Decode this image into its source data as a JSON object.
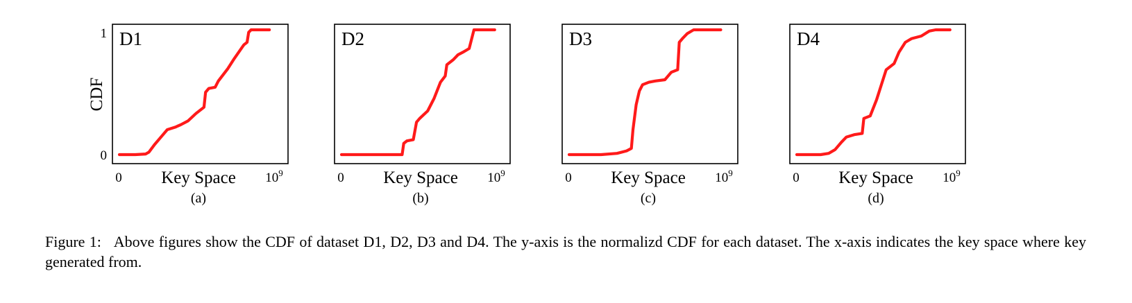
{
  "figure": {
    "y_axis_label": "CDF",
    "caption_lead": "Figure 1:",
    "caption_text": "Above figures show the CDF of dataset D1, D2, D3 and D4. The y-axis is the normalizd CDF for each dataset. The x-axis indicates the key space where key generated from."
  },
  "colors": {
    "curve": "#ff1a1a",
    "frame": "#000000"
  },
  "chart_data": [
    {
      "type": "line",
      "title": "D1",
      "sublabel": "(a)",
      "xlabel": "Key Space",
      "ylabel": "CDF",
      "x_tick_labels": [
        "0",
        "10^9"
      ],
      "y_tick_labels": [
        "0",
        "1"
      ],
      "xlim": [
        0,
        1000000000
      ],
      "ylim": [
        0,
        1
      ],
      "series": [
        {
          "x": [
            0,
            100000000,
            165000000,
            185000000,
            220000000,
            260000000,
            300000000,
            350000000,
            385000000,
            430000000,
            480000000,
            530000000,
            540000000,
            560000000,
            600000000,
            620000000,
            680000000,
            720000000,
            780000000,
            800000000,
            810000000,
            825000000,
            880000000,
            940000000
          ],
          "y": [
            0.0,
            0.0,
            0.005,
            0.02,
            0.08,
            0.14,
            0.2,
            0.22,
            0.24,
            0.27,
            0.33,
            0.38,
            0.5,
            0.53,
            0.54,
            0.59,
            0.69,
            0.77,
            0.88,
            0.9,
            0.98,
            1.0,
            1.0,
            1.0
          ]
        }
      ]
    },
    {
      "type": "line",
      "title": "D2",
      "sublabel": "(b)",
      "xlabel": "Key Space",
      "ylabel": "CDF",
      "x_tick_labels": [
        "0",
        "10^9"
      ],
      "y_tick_labels": [
        "0",
        "1"
      ],
      "xlim": [
        0,
        1000000000
      ],
      "ylim": [
        0,
        1
      ],
      "series": [
        {
          "x": [
            0,
            200000000,
            250000000,
            380000000,
            390000000,
            410000000,
            450000000,
            470000000,
            490000000,
            540000000,
            580000000,
            620000000,
            650000000,
            660000000,
            700000000,
            730000000,
            760000000,
            800000000,
            830000000,
            850000000,
            960000000
          ],
          "y": [
            0.0,
            0.0,
            0.0,
            0.0,
            0.09,
            0.11,
            0.12,
            0.26,
            0.29,
            0.35,
            0.45,
            0.58,
            0.63,
            0.72,
            0.76,
            0.8,
            0.82,
            0.85,
            1.0,
            1.0,
            1.0
          ]
        }
      ]
    },
    {
      "type": "line",
      "title": "D3",
      "sublabel": "(c)",
      "xlabel": "Key Space",
      "ylabel": "CDF",
      "x_tick_labels": [
        "0",
        "10^9"
      ],
      "y_tick_labels": [
        "0",
        "1"
      ],
      "xlim": [
        0,
        1000000000
      ],
      "ylim": [
        0,
        1
      ],
      "series": [
        {
          "x": [
            0,
            200000000,
            300000000,
            360000000,
            390000000,
            400000000,
            420000000,
            440000000,
            460000000,
            500000000,
            540000000,
            600000000,
            640000000,
            680000000,
            690000000,
            710000000,
            740000000,
            780000000,
            820000000,
            950000000
          ],
          "y": [
            0.0,
            0.0,
            0.01,
            0.03,
            0.05,
            0.2,
            0.4,
            0.51,
            0.56,
            0.58,
            0.59,
            0.6,
            0.66,
            0.68,
            0.9,
            0.93,
            0.97,
            1.0,
            1.0,
            1.0
          ]
        }
      ]
    },
    {
      "type": "line",
      "title": "D4",
      "sublabel": "(d)",
      "xlabel": "Key Space",
      "ylabel": "CDF",
      "x_tick_labels": [
        "0",
        "10^9"
      ],
      "y_tick_labels": [
        "0",
        "1"
      ],
      "xlim": [
        0,
        1000000000
      ],
      "ylim": [
        0,
        1
      ],
      "series": [
        {
          "x": [
            0,
            150000000,
            200000000,
            240000000,
            280000000,
            310000000,
            360000000,
            410000000,
            420000000,
            460000000,
            500000000,
            540000000,
            560000000,
            610000000,
            640000000,
            680000000,
            720000000,
            780000000,
            830000000,
            870000000,
            960000000
          ],
          "y": [
            0.0,
            0.0,
            0.01,
            0.04,
            0.1,
            0.14,
            0.16,
            0.17,
            0.29,
            0.31,
            0.44,
            0.6,
            0.68,
            0.73,
            0.82,
            0.9,
            0.93,
            0.95,
            0.99,
            1.0,
            1.0
          ]
        }
      ]
    }
  ]
}
